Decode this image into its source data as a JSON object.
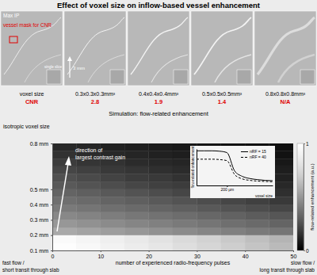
{
  "chart_data": [
    {
      "type": "image_panels",
      "title": "Effect of voxel size on inflow-based vessel enhancement",
      "annotations": [
        "Max IP",
        "vessel mask for CNR",
        "single slice",
        "3 mm"
      ],
      "x_label": "voxel size",
      "y_label": "CNR",
      "categories": [
        "0.3x0.3x0.3mm³",
        "0.4x0.4x0.4mm³",
        "0.5x0.5x0.5mm³",
        "0.8x0.8x0.8mm³"
      ],
      "values": [
        2.8,
        1.9,
        1.4,
        null
      ],
      "value_labels": [
        "2.8",
        "1.9",
        "1.4",
        "N/A"
      ],
      "data_labels": true
    },
    {
      "type": "heatmap",
      "title": "Simulation: flow-related enhancement",
      "x_label": "number of experienced radio-frequency pulses",
      "y_label": "isotropic voxel size",
      "annotations": [
        "direction of",
        "largest contrast gain",
        "fast flow /",
        "short transit through slab",
        "slow flow /",
        "long transit through slab"
      ],
      "x": [
        0,
        5,
        10,
        15,
        20,
        25,
        30,
        35,
        40,
        45,
        50
      ],
      "y": [
        0.1,
        0.15,
        0.2,
        0.25,
        0.3,
        0.35,
        0.4,
        0.45,
        0.5,
        0.55,
        0.6,
        0.65,
        0.7,
        0.75,
        0.8
      ],
      "cells": [
        [
          0.98,
          0.94,
          0.9,
          0.86,
          0.82,
          0.78,
          0.74,
          0.7,
          0.66,
          0.62
        ],
        [
          0.96,
          0.92,
          0.88,
          0.84,
          0.8,
          0.76,
          0.72,
          0.68,
          0.64,
          0.6
        ],
        [
          0.56,
          0.54,
          0.52,
          0.5,
          0.48,
          0.46,
          0.44,
          0.42,
          0.4,
          0.38
        ],
        [
          0.5,
          0.48,
          0.46,
          0.44,
          0.42,
          0.4,
          0.38,
          0.36,
          0.34,
          0.32
        ],
        [
          0.45,
          0.43,
          0.41,
          0.39,
          0.37,
          0.35,
          0.33,
          0.31,
          0.29,
          0.27
        ],
        [
          0.4,
          0.38,
          0.36,
          0.34,
          0.32,
          0.3,
          0.28,
          0.26,
          0.24,
          0.22
        ],
        [
          0.36,
          0.34,
          0.32,
          0.3,
          0.28,
          0.26,
          0.24,
          0.22,
          0.2,
          0.18
        ],
        [
          0.32,
          0.3,
          0.28,
          0.26,
          0.24,
          0.22,
          0.2,
          0.18,
          0.16,
          0.15
        ],
        [
          0.28,
          0.26,
          0.24,
          0.22,
          0.2,
          0.19,
          0.17,
          0.16,
          0.14,
          0.13
        ],
        [
          0.25,
          0.23,
          0.21,
          0.19,
          0.18,
          0.16,
          0.15,
          0.14,
          0.12,
          0.11
        ],
        [
          0.22,
          0.2,
          0.18,
          0.17,
          0.15,
          0.14,
          0.13,
          0.12,
          0.11,
          0.1
        ],
        [
          0.19,
          0.17,
          0.16,
          0.14,
          0.13,
          0.12,
          0.11,
          0.1,
          0.09,
          0.08
        ],
        [
          0.16,
          0.14,
          0.13,
          0.12,
          0.11,
          0.1,
          0.09,
          0.08,
          0.07,
          0.06
        ],
        [
          0.13,
          0.12,
          0.11,
          0.1,
          0.09,
          0.08,
          0.07,
          0.06,
          0.05,
          0.05
        ]
      ],
      "xlim": [
        0,
        50
      ],
      "xticks": [
        0,
        10,
        20,
        30,
        40,
        50
      ],
      "ylim": [
        0.1,
        0.8
      ],
      "yticks": [
        {
          "value": 0.1,
          "label": "0.1 mm"
        },
        {
          "value": 0.2,
          "label": "0.2 mm"
        },
        {
          "value": 0.3,
          "label": "0.3 mm"
        },
        {
          "value": 0.4,
          "label": "0.4 mm"
        },
        {
          "value": 0.5,
          "label": "0.5 mm"
        },
        {
          "value": 0.8,
          "label": "0.8 mm"
        }
      ],
      "color_range": [
        0,
        1
      ],
      "color_ticks": [
        0,
        1
      ],
      "color_label": "flow-related enhancement (a.u.)"
    },
    {
      "type": "line",
      "x_label": "voxel size",
      "y_label": "flow-related enhancement",
      "x": [
        0,
        50,
        100,
        150,
        200,
        250,
        300,
        350,
        400,
        450,
        500
      ],
      "series": [
        {
          "name": "nRF = 15",
          "color": "#000000",
          "line_style": "solid",
          "values": [
            0.95,
            0.95,
            0.95,
            0.94,
            0.9,
            0.4,
            0.25,
            0.19,
            0.16,
            0.14,
            0.13
          ]
        },
        {
          "name": "nRF = 40",
          "color": "#000000",
          "line_style": "dashed",
          "values": [
            0.72,
            0.72,
            0.72,
            0.71,
            0.68,
            0.3,
            0.18,
            0.14,
            0.12,
            0.11,
            0.1
          ]
        }
      ],
      "xlim": [
        0,
        500
      ],
      "ylim": [
        0,
        1
      ],
      "xticks": [
        {
          "value": 200,
          "label": "200 µm"
        }
      ],
      "yticks": [],
      "tick_labels": "x",
      "legend": "upper right"
    }
  ]
}
